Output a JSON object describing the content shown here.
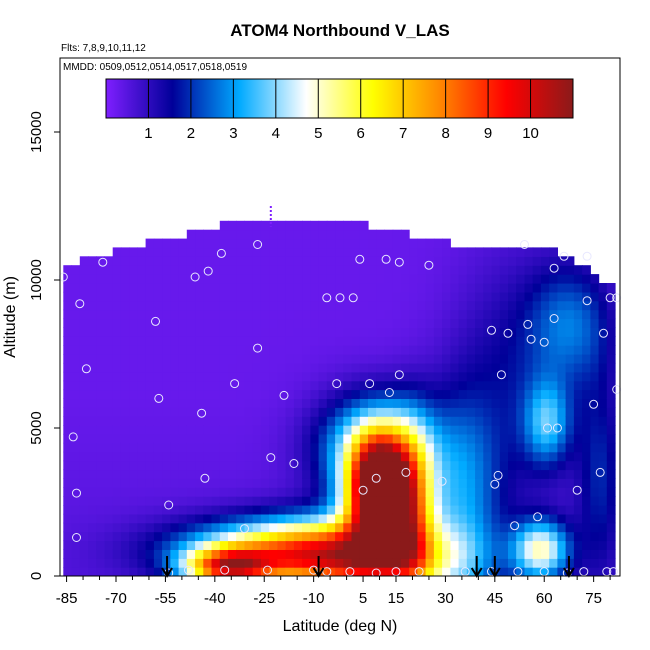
{
  "chart_data": {
    "type": "heatmap",
    "title": "ATOM4 Northbound V_LAS",
    "subtitle_flights": "Flts: 7,8,9,10,11,12",
    "subtitle_dates": "MMDD: 0509,0512,0514,0517,0518,0519",
    "xlabel": "Latitude (deg N)",
    "ylabel": "Altitude (m)",
    "xlim": [
      -87,
      83
    ],
    "ylim": [
      0,
      17500
    ],
    "x_ticks": [
      -85,
      -70,
      -55,
      -40,
      -25,
      -10,
      5,
      15,
      30,
      45,
      60,
      75
    ],
    "y_ticks": [
      0,
      5000,
      10000,
      15000
    ],
    "colorbar": {
      "range": [
        0,
        11
      ],
      "ticks": [
        1,
        2,
        3,
        4,
        5,
        6,
        7,
        8,
        9,
        10
      ],
      "stops": [
        "#7f1fff",
        "#000099",
        "#00aaff",
        "#ffffff",
        "#ffff00",
        "#ff8800",
        "#ff0000",
        "#8b1a1a"
      ]
    },
    "extent": [
      [
        -86,
        0,
        10500
      ],
      [
        -80,
        1300,
        10500
      ],
      [
        -65,
        1300,
        11000
      ],
      [
        -45,
        1300,
        11500
      ],
      [
        -30,
        1300,
        12000
      ],
      [
        -5,
        1300,
        12000
      ],
      [
        15,
        1300,
        11500
      ],
      [
        35,
        1300,
        11000
      ],
      [
        50,
        1300,
        11000
      ],
      [
        60,
        1300,
        11000
      ],
      [
        70,
        1300,
        10500
      ],
      [
        75,
        600,
        10000
      ],
      [
        82,
        300,
        9500
      ]
    ],
    "features": [
      {
        "lat": 10,
        "alt": 3100,
        "value": 9.5,
        "wlat": 6,
        "walt": 1100
      },
      {
        "lat": 11,
        "alt": 2200,
        "value": 8.0,
        "wlat": 8,
        "walt": 1400
      },
      {
        "lat": 9,
        "alt": 4400,
        "value": 5.0,
        "wlat": 12,
        "walt": 1200
      },
      {
        "lat": 20,
        "alt": 2200,
        "value": 4.5,
        "wlat": 5,
        "walt": 2000
      },
      {
        "lat": -36,
        "alt": 300,
        "value": 8.5,
        "wlat": 9,
        "walt": 450
      },
      {
        "lat": -22,
        "alt": 900,
        "value": 5.5,
        "wlat": 22,
        "walt": 700
      },
      {
        "lat": -8,
        "alt": 600,
        "value": 5.0,
        "wlat": 16,
        "walt": 900
      },
      {
        "lat": 12,
        "alt": 500,
        "value": 5.0,
        "wlat": 18,
        "walt": 900
      },
      {
        "lat": 35,
        "alt": 2500,
        "value": 3.0,
        "wlat": 8,
        "walt": 2500
      },
      {
        "lat": 59,
        "alt": 900,
        "value": 5.5,
        "wlat": 6,
        "walt": 700
      },
      {
        "lat": 61,
        "alt": 5200,
        "value": 3.5,
        "wlat": 5,
        "walt": 1000
      },
      {
        "lat": 68,
        "alt": 8500,
        "value": 2.8,
        "wlat": 9,
        "walt": 1500
      },
      {
        "lat": 50,
        "alt": 6500,
        "value": 1.6,
        "wlat": 12,
        "walt": 3000
      },
      {
        "lat": 77,
        "alt": 3500,
        "value": 2.0,
        "wlat": 5,
        "walt": 2500
      }
    ],
    "observation_points": [
      [
        -86,
        10100
      ],
      [
        -81,
        9200
      ],
      [
        -79,
        7000
      ],
      [
        -83,
        4700
      ],
      [
        -82,
        2800
      ],
      [
        -82,
        1300
      ],
      [
        -74,
        10600
      ],
      [
        -58,
        8600
      ],
      [
        -57,
        6000
      ],
      [
        -54,
        2400
      ],
      [
        -46,
        10100
      ],
      [
        -42,
        10300
      ],
      [
        -44,
        5500
      ],
      [
        -43,
        3300
      ],
      [
        -38,
        10900
      ],
      [
        -34,
        6500
      ],
      [
        -31,
        1600
      ],
      [
        -27,
        11200
      ],
      [
        -27,
        7700
      ],
      [
        -23,
        4000
      ],
      [
        -19,
        6100
      ],
      [
        -16,
        3800
      ],
      [
        -6,
        9400
      ],
      [
        -2,
        9400
      ],
      [
        -3,
        6500
      ],
      [
        2,
        9400
      ],
      [
        4,
        10700
      ],
      [
        5,
        2900
      ],
      [
        7,
        6500
      ],
      [
        9,
        3300
      ],
      [
        12,
        10700
      ],
      [
        13,
        6200
      ],
      [
        16,
        6800
      ],
      [
        16,
        10600
      ],
      [
        18,
        3500
      ],
      [
        25,
        10500
      ],
      [
        29,
        3200
      ],
      [
        44,
        8300
      ],
      [
        47,
        6800
      ],
      [
        46,
        3400
      ],
      [
        45,
        3100
      ],
      [
        49,
        8200
      ],
      [
        51,
        1700
      ],
      [
        55,
        8500
      ],
      [
        54,
        11200
      ],
      [
        56,
        8000
      ],
      [
        58,
        2000
      ],
      [
        60,
        7900
      ],
      [
        61,
        5000
      ],
      [
        63,
        10400
      ],
      [
        63,
        8700
      ],
      [
        64,
        5000
      ],
      [
        66,
        10800
      ],
      [
        70,
        2900
      ],
      [
        73,
        9300
      ],
      [
        75,
        5800
      ],
      [
        73,
        10800
      ],
      [
        77,
        3500
      ],
      [
        78,
        8200
      ],
      [
        80,
        9400
      ],
      [
        82,
        6300
      ],
      [
        82,
        9400
      ],
      [
        -54,
        100
      ],
      [
        -48,
        200
      ],
      [
        -37,
        200
      ],
      [
        -24,
        200
      ],
      [
        -10,
        200
      ],
      [
        -6,
        150
      ],
      [
        1,
        150
      ],
      [
        9,
        100
      ],
      [
        15,
        150
      ],
      [
        22,
        150
      ],
      [
        36,
        150
      ],
      [
        44,
        150
      ],
      [
        52,
        150
      ],
      [
        60,
        150
      ],
      [
        67,
        100
      ],
      [
        72,
        150
      ],
      [
        79,
        150
      ],
      [
        81,
        150
      ]
    ],
    "arrow_latitudes": [
      -54.5,
      -8.5,
      39.5,
      45,
      67.5
    ],
    "top_marker": {
      "lat": -23,
      "alt_top": 12500,
      "alt_bottom": 11800
    }
  }
}
